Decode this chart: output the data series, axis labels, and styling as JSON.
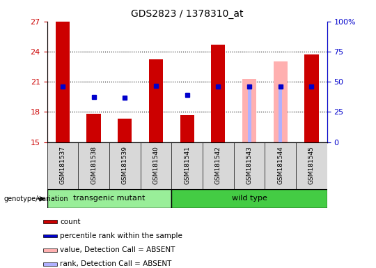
{
  "title": "GDS2823 / 1378310_at",
  "samples": [
    "GSM181537",
    "GSM181538",
    "GSM181539",
    "GSM181540",
    "GSM181541",
    "GSM181542",
    "GSM181543",
    "GSM181544",
    "GSM181545"
  ],
  "ylim": [
    15,
    27
  ],
  "yticks": [
    15,
    18,
    21,
    24,
    27
  ],
  "right_yticks": [
    0,
    25,
    50,
    75,
    100
  ],
  "right_ytick_labels": [
    "0",
    "25",
    "50",
    "75",
    "100%"
  ],
  "count_values": [
    27.0,
    17.8,
    17.3,
    23.2,
    17.7,
    24.7,
    null,
    null,
    23.7
  ],
  "rank_values": [
    20.5,
    19.5,
    19.4,
    20.6,
    19.7,
    20.5,
    20.5,
    20.5,
    20.5
  ],
  "absent_value_values": [
    null,
    null,
    null,
    null,
    null,
    null,
    21.3,
    23.0,
    null
  ],
  "absent_rank_values": [
    null,
    null,
    null,
    null,
    null,
    null,
    20.5,
    20.5,
    null
  ],
  "count_color": "#cc0000",
  "rank_color": "#0000cc",
  "absent_value_color": "#ffb0b0",
  "absent_rank_color": "#b0b0ff",
  "bar_bottom": 15,
  "groups": [
    {
      "label": "transgenic mutant",
      "start": 0,
      "end": 4,
      "color": "#99ee99"
    },
    {
      "label": "wild type",
      "start": 4,
      "end": 9,
      "color": "#44cc44"
    }
  ],
  "group_label": "genotype/variation",
  "legend_items": [
    {
      "color": "#cc0000",
      "label": "count"
    },
    {
      "color": "#0000cc",
      "label": "percentile rank within the sample"
    },
    {
      "color": "#ffb0b0",
      "label": "value, Detection Call = ABSENT"
    },
    {
      "color": "#b0b0ff",
      "label": "rank, Detection Call = ABSENT"
    }
  ],
  "plot_bg": "#ffffff",
  "left_label_color": "#cc0000",
  "right_label_color": "#0000cc",
  "tick_area_bg": "#d8d8d8"
}
